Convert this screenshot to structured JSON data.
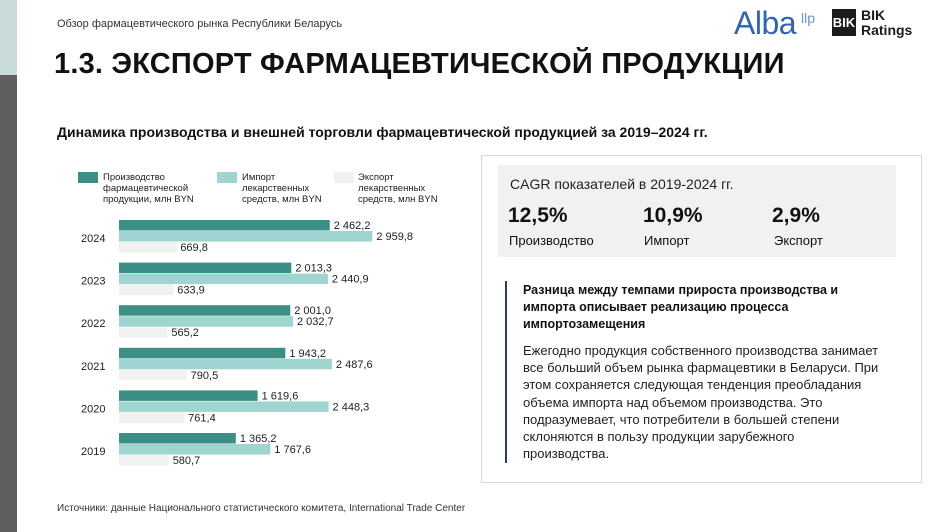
{
  "header": {
    "report_label": "Обзор фармацевтического рынка Республики Беларусь",
    "logo_alba": "Alba",
    "logo_alba_sup": "llp",
    "logo_bik_mark": "BIK",
    "logo_bik_line1": "BIK",
    "logo_bik_line2": "Ratings"
  },
  "page_title": "1.3. ЭКСПОРТ ФАРМАЦЕВТИЧЕСКОЙ ПРОДУКЦИИ",
  "chart_data": {
    "type": "bar",
    "orientation": "horizontal",
    "title": "Динамика производства и внешней торговли фармацевтической продукцией за 2019–2024 гг.",
    "categories": [
      "2024",
      "2023",
      "2022",
      "2021",
      "2020",
      "2019"
    ],
    "series": [
      {
        "name": "Производство фармацевтической продукции, млн BYN",
        "color": "#3b8f84",
        "values": [
          2462.2,
          2013.3,
          2001.0,
          1943.2,
          1619.6,
          1365.2
        ],
        "labels": [
          "2 462,2",
          "2 013,3",
          "2 001,0",
          "1 943,2",
          "1 619,6",
          "1 365,2"
        ]
      },
      {
        "name": "Импорт лекарственных средств, млн BYN",
        "color": "#9ed5d0",
        "values": [
          2959.8,
          2440.9,
          2032.7,
          2487.6,
          2448.3,
          1767.6
        ],
        "labels": [
          "2 959,8",
          "2 440,9",
          "2 032,7",
          "2 487,6",
          "2 448,3",
          "1 767,6"
        ]
      },
      {
        "name": "Экспорт лекарственных средств, млн BYN",
        "color": "#f1f1f1",
        "values": [
          669.8,
          633.9,
          565.2,
          790.5,
          761.4,
          580.7
        ],
        "labels": [
          "669,8",
          "633,9",
          "565,2",
          "790,5",
          "761,4",
          "580,7"
        ]
      }
    ],
    "xlim": [
      0,
      3400
    ],
    "grid": false,
    "legend_position": "top"
  },
  "legend": {
    "production": [
      "Производство",
      "фармацевтической",
      "продукции, млн BYN"
    ],
    "import": [
      "Импорт",
      "лекарственных",
      "средств, млн BYN"
    ],
    "export": [
      "Экспорт",
      "лекарственных",
      "средств, млн BYN"
    ]
  },
  "cagr": {
    "heading": "CAGR показателей в 2019-2024 гг.",
    "items": [
      {
        "value": "12,5%",
        "label": "Производство"
      },
      {
        "value": "10,9%",
        "label": "Импорт"
      },
      {
        "value": "2,9%",
        "label": "Экспорт"
      }
    ]
  },
  "info": {
    "heading": "Разница между темпами прироста производства и импорта описывает реализацию процесса импортозамещения",
    "body": "Ежегодно продукция собственного производства занимает все больший объем рынка фармацевтики в Беларуси. При этом сохраняется следующая тенденция преобладания объема импорта над объемом производства. Это подразумевает, что потребители в большей степени склоняются в пользу продукции зарубежного производства."
  },
  "sources": "Источники: данные Национального статистического комитета, International Trade Center",
  "colors": {
    "production": "#3b8f84",
    "import": "#9ed5d0",
    "export": "#f1f1f1",
    "accent": "#283e6b",
    "logo_alba": "#2f63b8"
  }
}
